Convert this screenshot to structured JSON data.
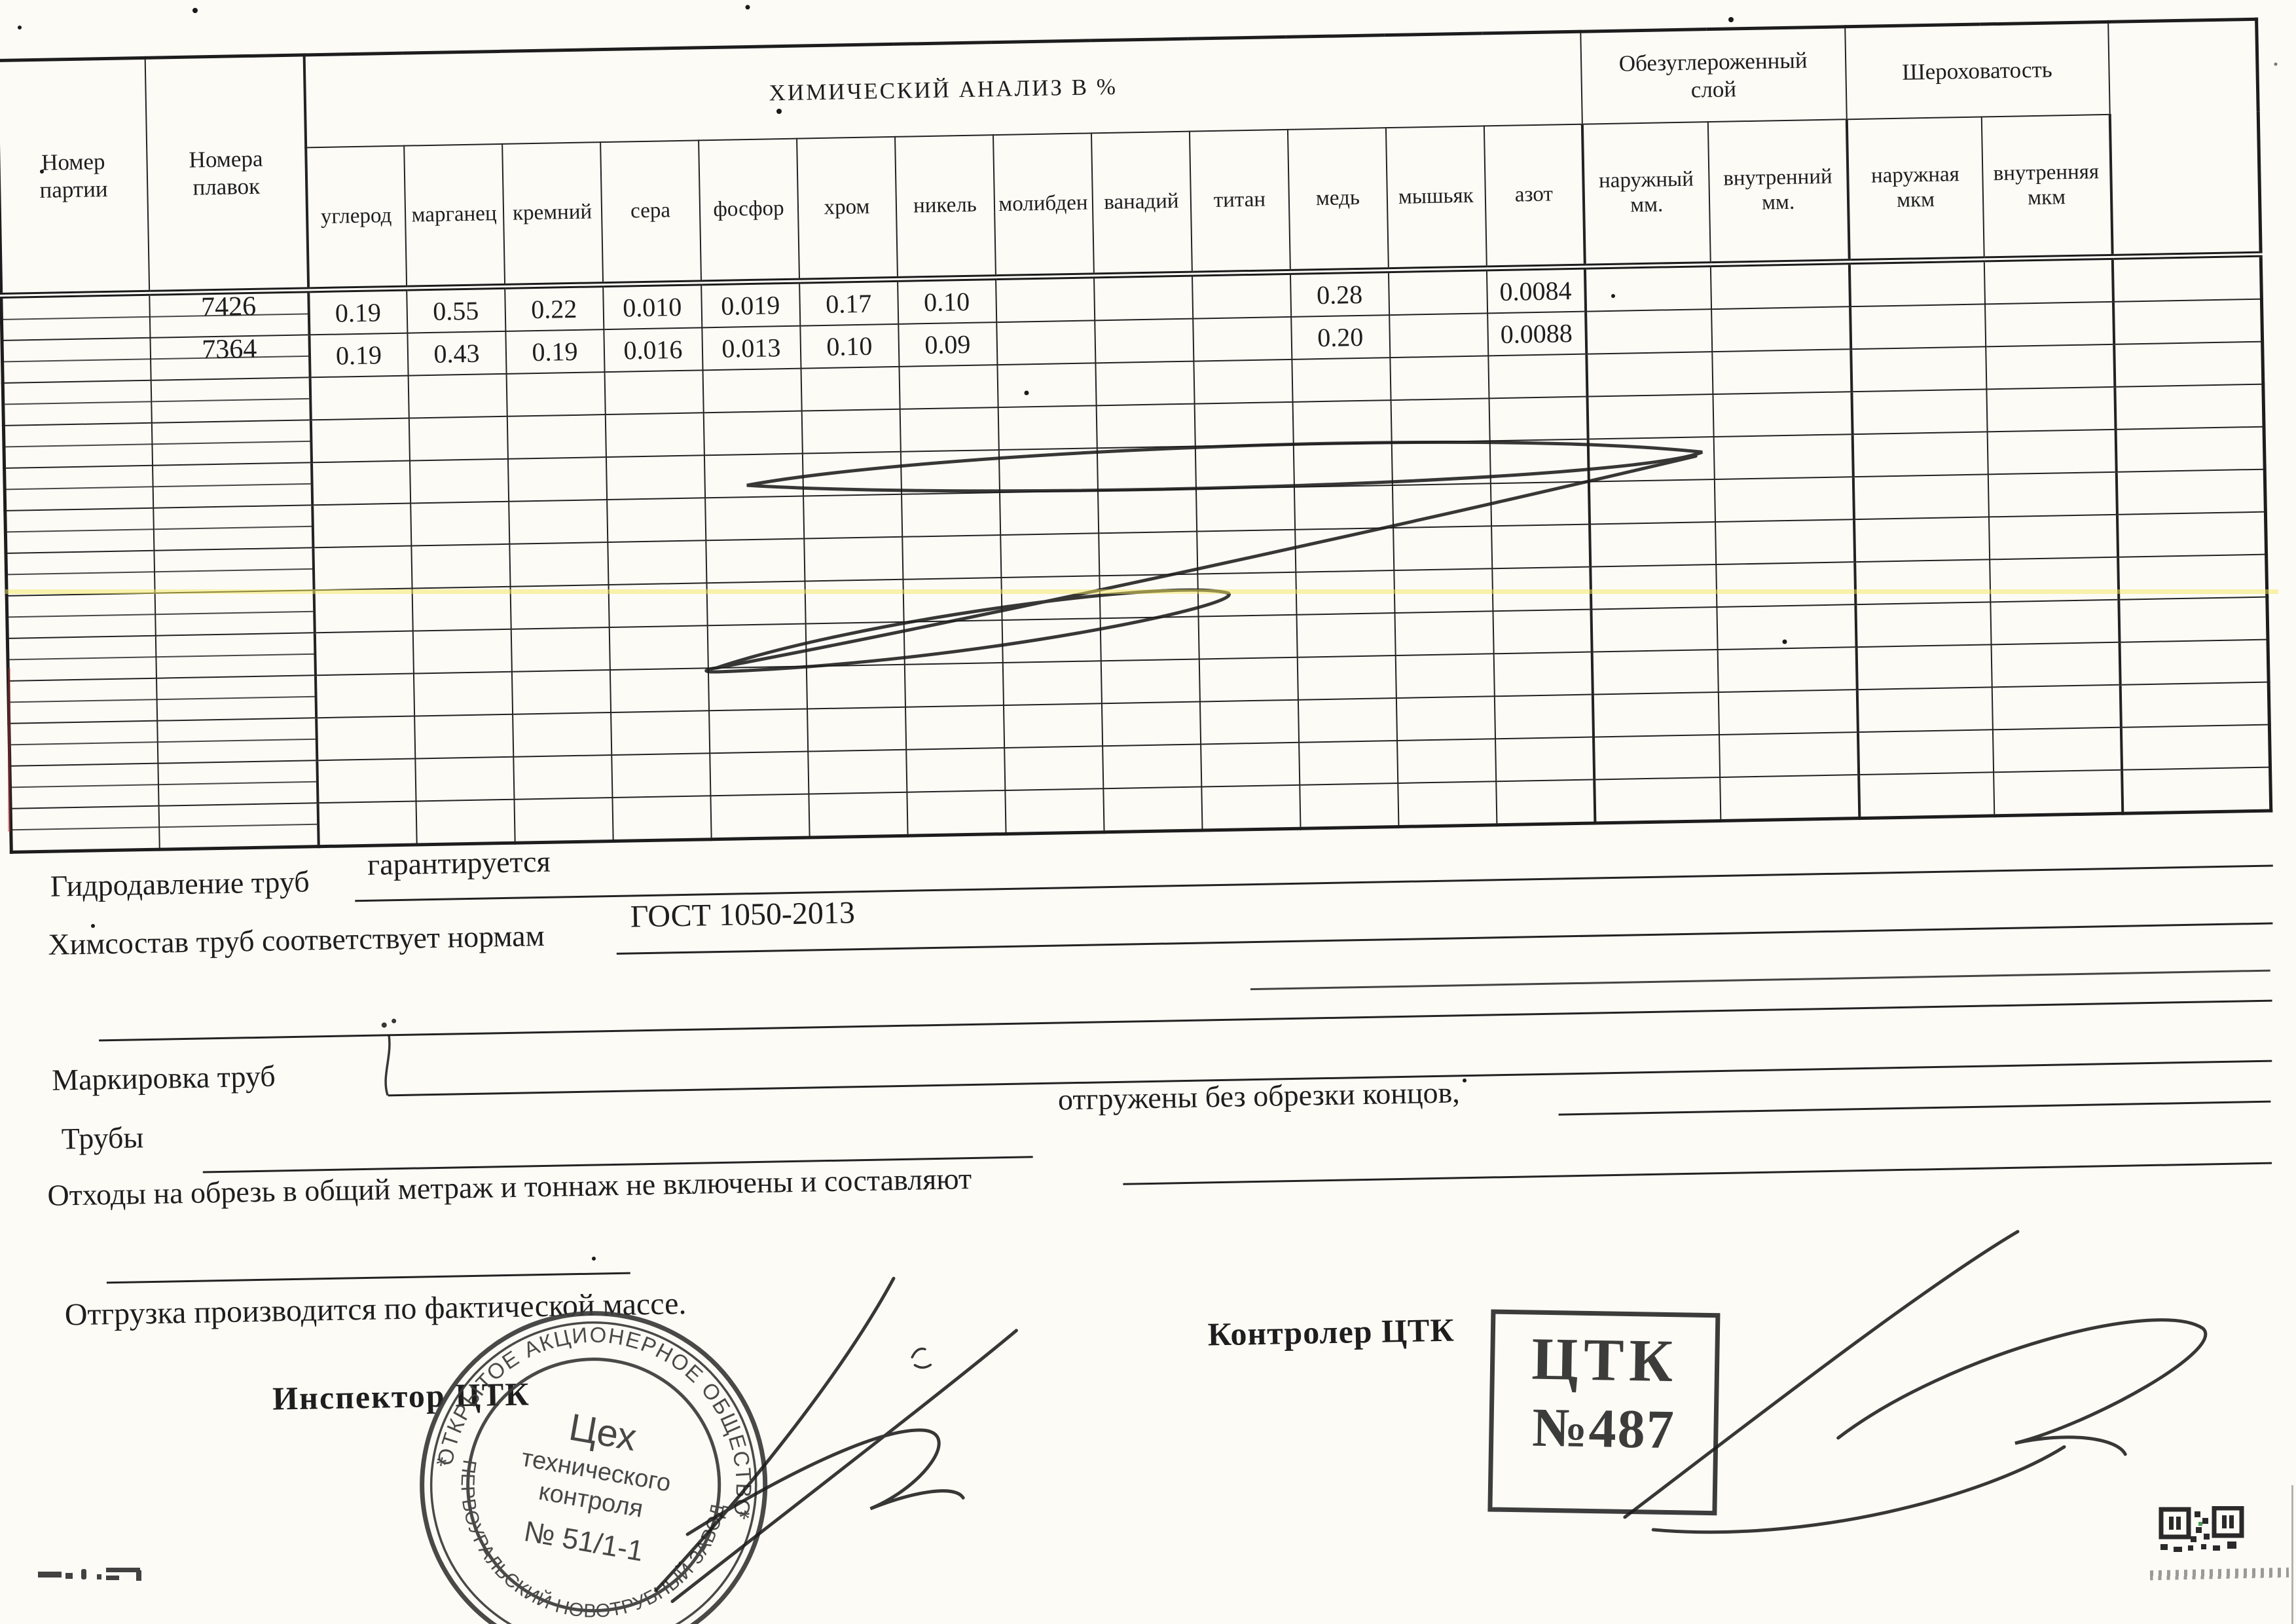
{
  "table": {
    "party_header": "Номер\nпартии",
    "melts_header": "Номера\nплавок",
    "chem_group": "ХИМИЧЕСКИЙ АНАЛИЗ В  %",
    "chem_columns": [
      "углерод",
      "марганец",
      "кремний",
      "сера",
      "фосфор",
      "хром",
      "никель",
      "молибден",
      "ванадий",
      "титан",
      "медь",
      "мышьяк",
      "азот"
    ],
    "decarb_group": "Обезуглероженный\nслой",
    "decarb_columns": [
      "наружный\nмм.",
      "внутренний\nмм."
    ],
    "rough_group": "Шероховатость",
    "rough_columns": [
      "наружная\nмкм",
      "внутренняя\nмкм"
    ],
    "total_body_rows": 13,
    "rows": [
      {
        "party": "",
        "melt": "7426",
        "chem": [
          "0.19",
          "0.55",
          "0.22",
          "0.010",
          "0.019",
          "0.17",
          "0.10",
          "",
          "",
          "",
          "0.28",
          "",
          "0.0084"
        ],
        "decarb": [
          "",
          ""
        ],
        "rough": [
          "",
          ""
        ],
        "tail": ""
      },
      {
        "party": "",
        "melt": "7364",
        "chem": [
          "0.19",
          "0.43",
          "0.19",
          "0.016",
          "0.013",
          "0.10",
          "0.09",
          "",
          "",
          "",
          "0.20",
          "",
          "0.0088"
        ],
        "decarb": [
          "",
          ""
        ],
        "rough": [
          "",
          ""
        ],
        "tail": ""
      }
    ]
  },
  "notes": {
    "hydro_label": "Гидродавление труб",
    "hydro_value": "гарантируется",
    "chem_label": "Химсостав труб соответствует нормам",
    "chem_value": "ГОСТ 1050-2013",
    "marking_label": "Маркировка труб",
    "pipes_label": "Трубы",
    "pipes_note": "отгружены без обрезки концов,",
    "waste_label": "Отходы на обрезь в общий метраж и тоннаж не включены и составляют",
    "shipment_note": "Отгрузка производится по фактической массе."
  },
  "signoff": {
    "inspector_label": "Инспектор  ЦТК",
    "controller_label": "Контролер ЦТК"
  },
  "round_stamp": {
    "ring_top": "ОТКРЫТОЕ АКЦИОНЕРНОЕ ОБЩЕСТВО",
    "ring_bottom": "«ПЕРВОУРАЛЬСКИЙ НОВОТРУБНЫЙ ЗАВОД»",
    "separator_left": "*",
    "separator_right": "*",
    "center_line1": "Цех",
    "center_line2": "технического",
    "center_line3": "контроля",
    "center_line4": "№ 51/1-1"
  },
  "rect_stamp": {
    "line1": "ЦТК",
    "line2": "№487"
  },
  "colors": {
    "paper": "#fcfbf6",
    "ink": "#1e1e1e",
    "stamp_ink": "#2d2d2d",
    "highlight": "#f3e75e"
  }
}
